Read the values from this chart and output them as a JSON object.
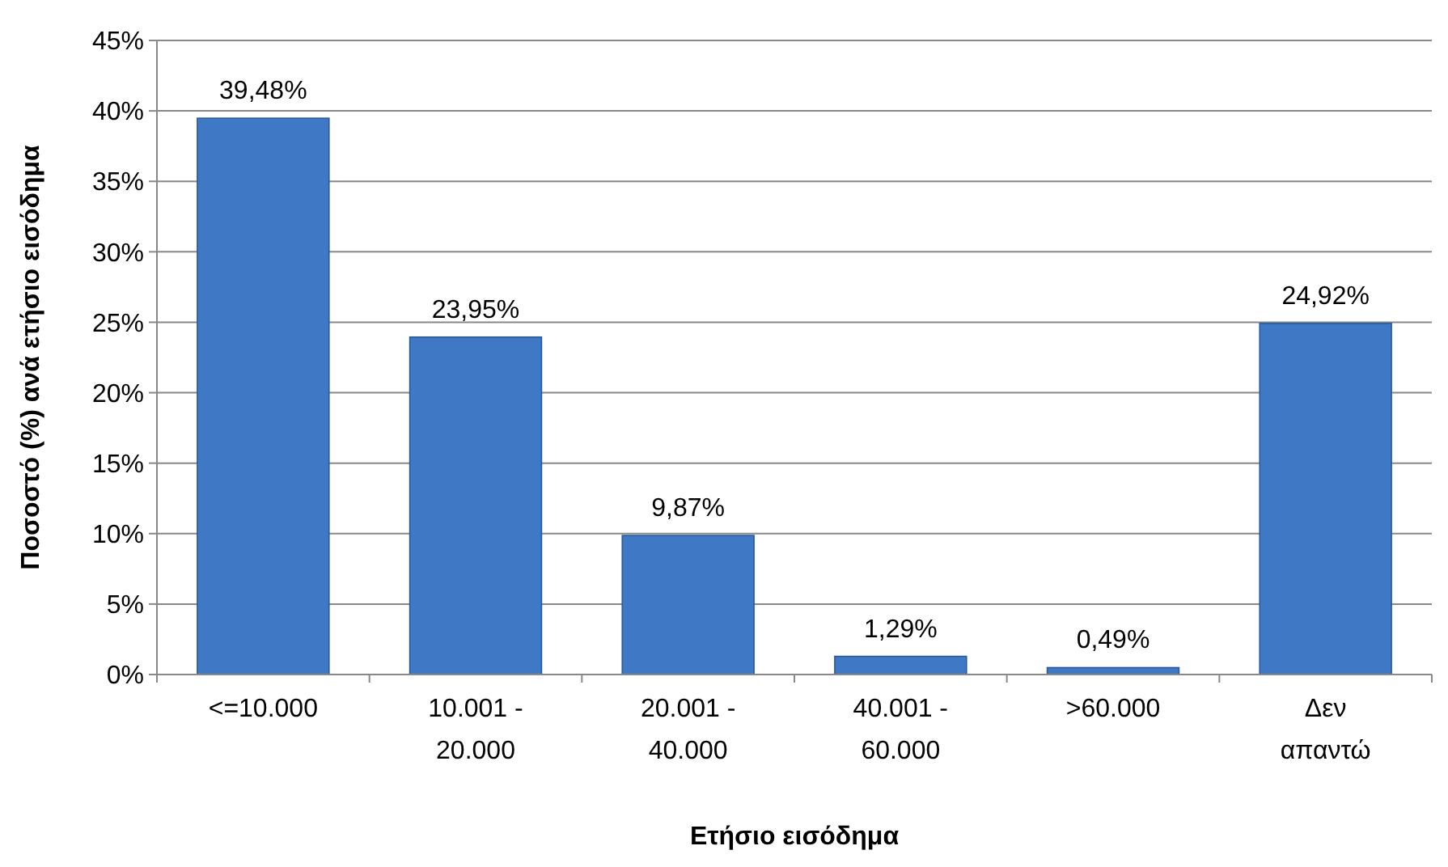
{
  "chart_data": {
    "type": "bar",
    "xlabel": "Ετήσιο εισόδημα",
    "ylabel": "Ποσοστό (%) ανά ετήσιο εισόδημα",
    "categories": [
      "<=10.000",
      "10.001 - 20.000",
      "20.001 - 40.000",
      "40.001 - 60.000",
      ">60.000",
      "Δεν απαντώ"
    ],
    "values": [
      39.48,
      23.95,
      9.87,
      1.29,
      0.49,
      24.92
    ],
    "value_labels": [
      "39,48%",
      "23,95%",
      "9,87%",
      "1,29%",
      "0,49%",
      "24,92%"
    ],
    "color": "#3f78c4",
    "ylim": [
      0,
      45
    ],
    "yticks": [
      {
        "value": 0,
        "label": "0%"
      },
      {
        "value": 5,
        "label": "5%"
      },
      {
        "value": 10,
        "label": "10%"
      },
      {
        "value": 15,
        "label": "15%"
      },
      {
        "value": 20,
        "label": "20%"
      },
      {
        "value": 25,
        "label": "25%"
      },
      {
        "value": 30,
        "label": "30%"
      },
      {
        "value": 35,
        "label": "35%"
      },
      {
        "value": 40,
        "label": "40%"
      },
      {
        "value": 45,
        "label": "45%"
      }
    ],
    "grid": "y"
  }
}
